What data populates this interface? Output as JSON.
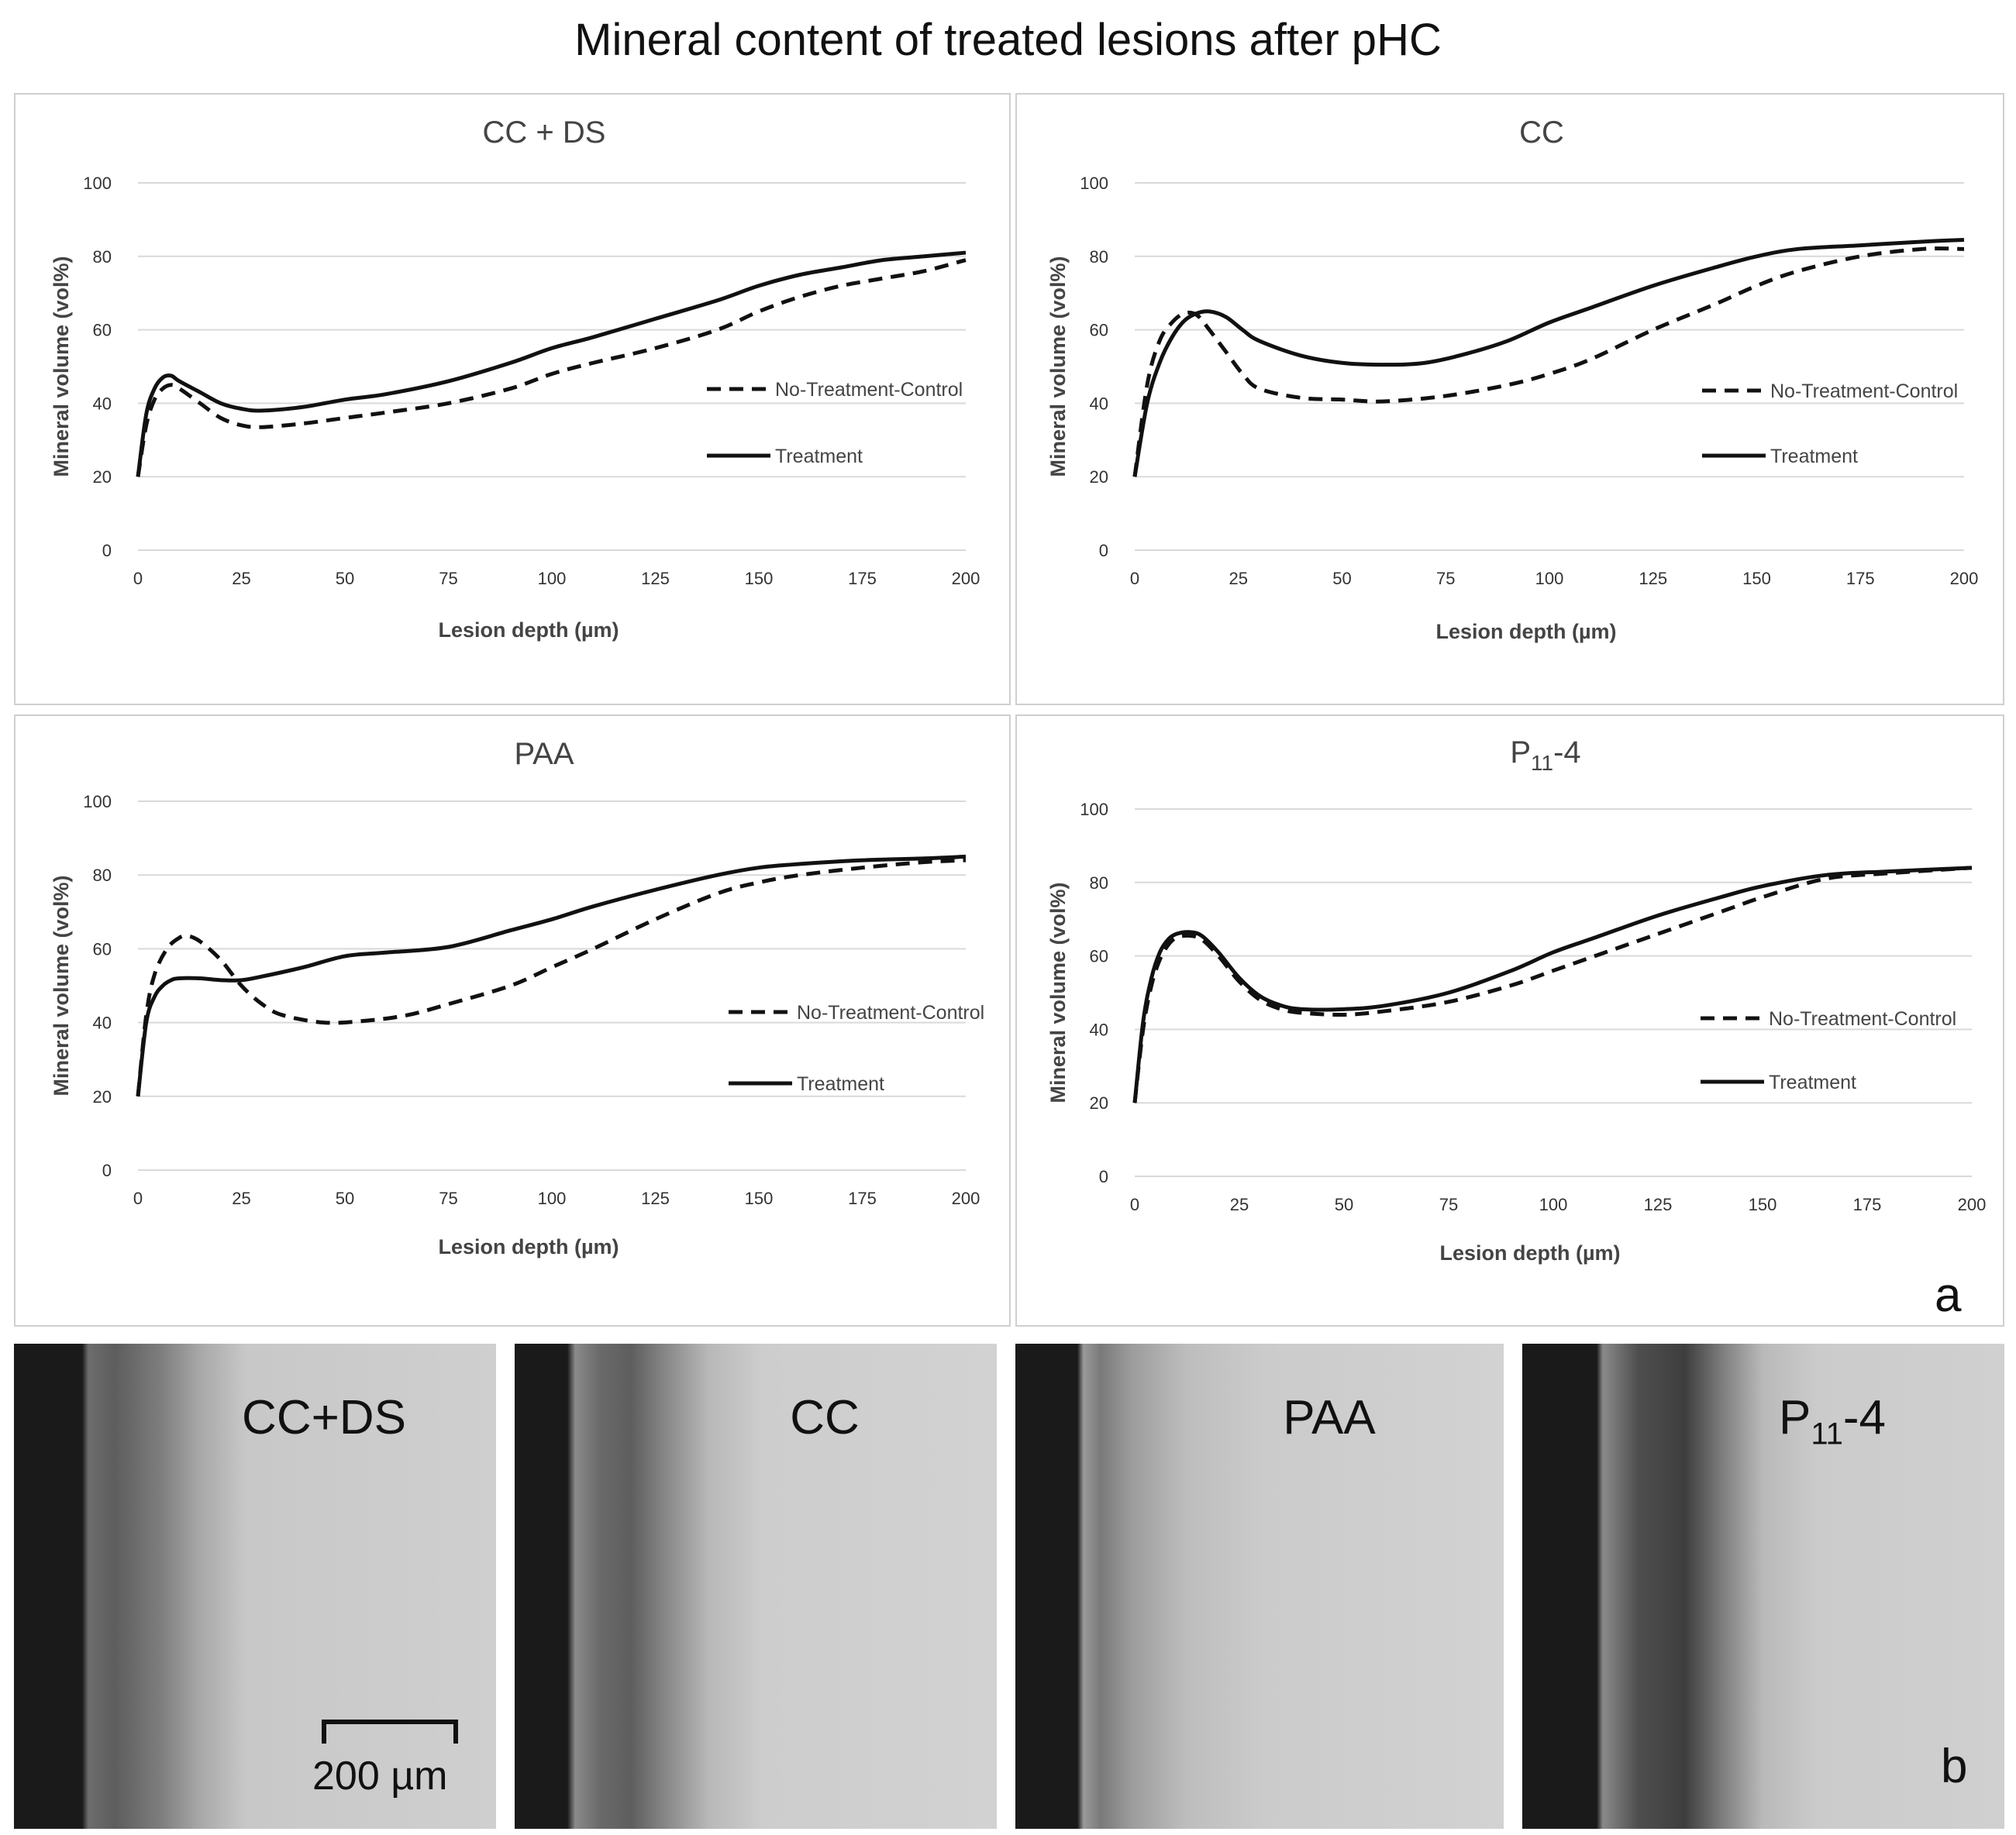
{
  "figure": {
    "title": "Mineral content of treated lesions after pHC",
    "part_a_letter": "a",
    "part_b_letter": "b",
    "scalebar_label": "200 µm"
  },
  "chart_data": [
    {
      "type": "line",
      "title": "CC + DS",
      "xlabel": "Lesion depth (µm)",
      "ylabel": "Mineral volume (vol%)",
      "xlim": [
        0,
        200
      ],
      "ylim": [
        0,
        100
      ],
      "xticks": [
        0,
        25,
        50,
        75,
        100,
        125,
        150,
        175,
        200
      ],
      "yticks": [
        0,
        20,
        40,
        60,
        80,
        100
      ],
      "series": [
        {
          "name": "No-Treatment-Control",
          "style": "dashed",
          "x": [
            0,
            2,
            4,
            6,
            8,
            10,
            15,
            20,
            25,
            30,
            40,
            50,
            60,
            75,
            90,
            100,
            110,
            125,
            140,
            150,
            160,
            170,
            180,
            190,
            200
          ],
          "y": [
            20,
            34,
            41,
            44,
            45,
            44,
            40,
            36,
            34,
            33.5,
            34.5,
            36,
            37.5,
            40,
            44,
            48,
            51,
            55,
            60,
            65,
            69,
            72,
            74,
            76,
            79
          ]
        },
        {
          "name": "Treatment",
          "style": "solid",
          "x": [
            0,
            2,
            4,
            6,
            8,
            10,
            15,
            20,
            25,
            30,
            40,
            50,
            60,
            75,
            90,
            100,
            110,
            125,
            140,
            150,
            160,
            170,
            180,
            190,
            200
          ],
          "y": [
            20,
            37,
            44,
            47,
            47.5,
            46,
            43,
            40,
            38.5,
            38,
            39,
            41,
            42.5,
            46,
            51,
            55,
            58,
            63,
            68,
            72,
            75,
            77,
            79,
            80,
            81
          ]
        }
      ]
    },
    {
      "type": "line",
      "title": "CC",
      "xlabel": "Lesion depth (µm)",
      "ylabel": "Mineral volume (vol%)",
      "xlim": [
        0,
        200
      ],
      "ylim": [
        0,
        100
      ],
      "xticks": [
        0,
        25,
        50,
        75,
        100,
        125,
        150,
        175,
        200
      ],
      "yticks": [
        0,
        20,
        40,
        60,
        80,
        100
      ],
      "series": [
        {
          "name": "No-Treatment-Control",
          "style": "dashed",
          "x": [
            0,
            3,
            6,
            9,
            12,
            15,
            18,
            22,
            26,
            30,
            40,
            50,
            60,
            75,
            90,
            100,
            110,
            125,
            140,
            150,
            160,
            175,
            190,
            200
          ],
          "y": [
            20,
            45,
            57,
            62,
            64.5,
            64,
            60,
            54,
            48,
            44,
            41.5,
            41,
            40.5,
            42,
            45,
            48,
            52,
            60,
            67,
            72,
            76,
            80,
            82,
            82
          ]
        },
        {
          "name": "Treatment",
          "style": "solid",
          "x": [
            0,
            3,
            6,
            9,
            12,
            15,
            18,
            22,
            26,
            30,
            40,
            50,
            60,
            70,
            80,
            90,
            100,
            110,
            125,
            140,
            150,
            160,
            175,
            190,
            200
          ],
          "y": [
            20,
            40,
            51,
            58,
            62.5,
            64.5,
            65,
            63.5,
            60,
            57,
            53,
            51,
            50.5,
            51,
            53.5,
            57,
            62,
            66,
            72,
            77,
            80,
            82,
            83,
            84,
            84.5
          ]
        }
      ]
    },
    {
      "type": "line",
      "title": "PAA",
      "xlabel": "Lesion depth (µm)",
      "ylabel": "Mineral volume (vol%)",
      "xlim": [
        0,
        200
      ],
      "ylim": [
        0,
        100
      ],
      "xticks": [
        0,
        25,
        50,
        75,
        100,
        125,
        150,
        175,
        200
      ],
      "yticks": [
        0,
        20,
        40,
        60,
        80,
        100
      ],
      "series": [
        {
          "name": "No-Treatment-Control",
          "style": "dashed",
          "x": [
            0,
            2,
            4,
            7,
            10,
            12,
            15,
            20,
            25,
            30,
            35,
            45,
            55,
            65,
            75,
            90,
            100,
            110,
            125,
            140,
            150,
            160,
            175,
            190,
            200
          ],
          "y": [
            20,
            42,
            53,
            60,
            63,
            63.5,
            62,
            57,
            50,
            45,
            42,
            40,
            40.5,
            42,
            45,
            50,
            55,
            60,
            68,
            75,
            78,
            80,
            82,
            83.5,
            84
          ]
        },
        {
          "name": "Treatment",
          "style": "solid",
          "x": [
            0,
            2,
            4,
            6,
            8,
            10,
            15,
            20,
            25,
            30,
            40,
            50,
            60,
            75,
            90,
            100,
            110,
            125,
            140,
            150,
            160,
            175,
            190,
            200
          ],
          "y": [
            20,
            40,
            47,
            50,
            51.5,
            52,
            52,
            51.5,
            51.5,
            52.5,
            55,
            58,
            59,
            60.5,
            65,
            68,
            71.5,
            76,
            80,
            82,
            83,
            84,
            84.5,
            85
          ]
        }
      ]
    },
    {
      "type": "line",
      "title": "P11-4",
      "xlabel": "Lesion depth (µm)",
      "ylabel": "Mineral volume (vol%)",
      "xlim": [
        0,
        200
      ],
      "ylim": [
        0,
        100
      ],
      "xticks": [
        0,
        25,
        50,
        75,
        100,
        125,
        150,
        175,
        200
      ],
      "yticks": [
        0,
        20,
        40,
        60,
        80,
        100
      ],
      "series": [
        {
          "name": "No-Treatment-Control",
          "style": "dashed",
          "x": [
            0,
            2,
            4,
            6,
            8,
            10,
            13,
            16,
            20,
            25,
            30,
            35,
            40,
            50,
            60,
            75,
            90,
            100,
            110,
            125,
            140,
            150,
            165,
            180,
            200
          ],
          "y": [
            20,
            40,
            52,
            59,
            63,
            65,
            65.5,
            64.5,
            60,
            53,
            48,
            45.5,
            44.5,
            44,
            45,
            47.5,
            52,
            56,
            60,
            66,
            72,
            76,
            81,
            82.5,
            84
          ]
        },
        {
          "name": "Treatment",
          "style": "solid",
          "x": [
            0,
            2,
            4,
            6,
            8,
            10,
            13,
            16,
            20,
            25,
            30,
            35,
            40,
            50,
            60,
            75,
            90,
            100,
            110,
            125,
            140,
            150,
            165,
            180,
            200
          ],
          "y": [
            20,
            42,
            54,
            61,
            64.5,
            66,
            66.5,
            65.5,
            61,
            54,
            49,
            46.5,
            45.5,
            45.5,
            46.5,
            50,
            56,
            61,
            65,
            71,
            76,
            79,
            82,
            83,
            84
          ]
        }
      ]
    }
  ],
  "micrographs": [
    {
      "label": "CC+DS",
      "sub": ""
    },
    {
      "label": "CC",
      "sub": ""
    },
    {
      "label": "PAA",
      "sub": ""
    },
    {
      "label": "P",
      "sub": "11",
      "suffix": "-4"
    }
  ]
}
